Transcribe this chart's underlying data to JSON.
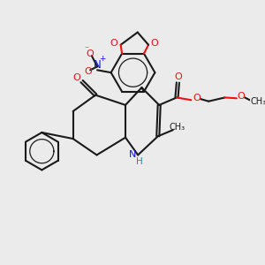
{
  "bg_color": "#ebebeb",
  "bond_color": "#1a1a1a",
  "oxygen_color": "#ee1111",
  "nitrogen_color": "#1111ee",
  "nh_color": "#2288aa",
  "figsize": [
    3.0,
    3.0
  ],
  "dpi": 100,
  "xlim": [
    0,
    10
  ],
  "ylim": [
    0,
    10
  ]
}
